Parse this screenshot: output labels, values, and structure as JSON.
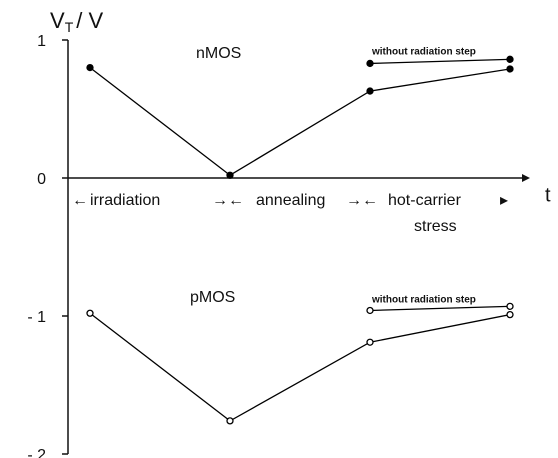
{
  "chart_data": {
    "type": "line",
    "ylabel": [
      "V",
      "T",
      "/ V"
    ],
    "xlabel": "t",
    "categories": [
      null,
      null,
      null,
      null
    ],
    "phases": [
      "irradiation",
      "annealing",
      "hot-carrier",
      "stress"
    ],
    "ylim": [
      -2,
      1
    ],
    "yticks": [
      1,
      0,
      {
        "value": -1,
        "label": "- 1"
      },
      {
        "value": -2,
        "label": "- 2"
      }
    ],
    "grid": false,
    "series": [
      {
        "name": "nMOS",
        "color": "#000000",
        "marker": "filled",
        "values": [
          0.8,
          0.02,
          0.63,
          0.79
        ]
      },
      {
        "name": "without radiation step",
        "color": "#000000",
        "marker": "filled",
        "values": [
          null,
          null,
          0.83,
          0.86
        ]
      },
      {
        "name": "pMOS",
        "color": "#000000",
        "marker": "open",
        "values": [
          -0.98,
          -1.76,
          -1.19,
          -0.99
        ]
      },
      {
        "name": "without radiation step",
        "color": "#000000",
        "marker": "open",
        "values": [
          null,
          null,
          -0.96,
          -0.93
        ]
      }
    ]
  }
}
